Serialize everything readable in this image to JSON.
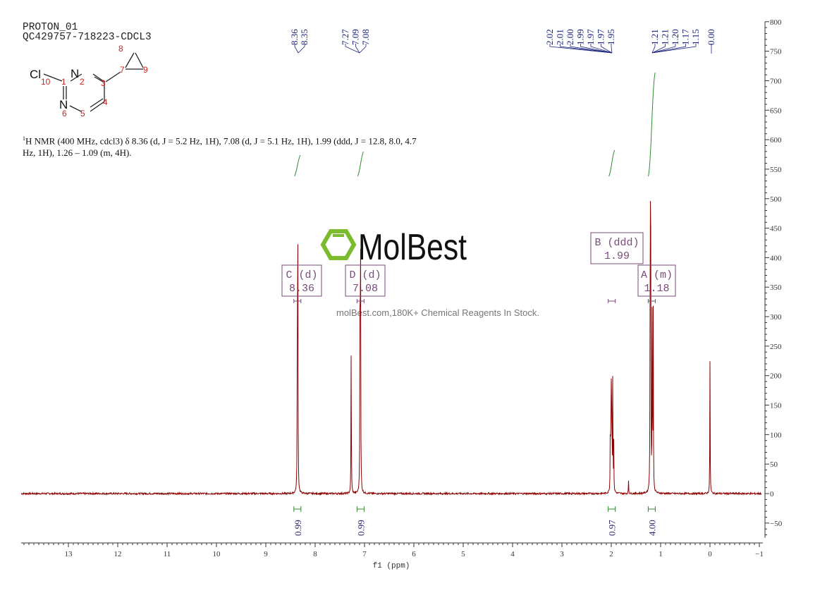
{
  "header": {
    "line1": "PROTON_01",
    "line2": "QC429757-718223-CDCL3"
  },
  "molecule": {
    "atoms": [
      "Cl",
      "N",
      "N"
    ],
    "numbers": [
      "1",
      "2",
      "3",
      "4",
      "5",
      "6",
      "7",
      "8",
      "9",
      "10"
    ]
  },
  "description": {
    "sup": "1",
    "text": "H NMR (400 MHz, cdcl3) δ 8.36 (d, J = 5.2 Hz, 1H), 7.08 (d, J = 5.1 Hz, 1H), 1.99 (ddd, J = 12.8, 8.0, 4.7 Hz, 1H), 1.26 – 1.09 (m, 4H)."
  },
  "watermark": {
    "brand": "MolBest",
    "tagline": "molBest.com,180K+ Chemical Reagents In Stock.",
    "color": "#7dbb2e"
  },
  "colors": {
    "spectrum": "#8b0000",
    "integral": "#2e8b2e",
    "peak_label": "#1a237e",
    "multiplet_box": "#7a4a7a",
    "axis": "#333333"
  },
  "chart_data": {
    "type": "line",
    "xlabel": "f1 (ppm)",
    "ylabel": "",
    "xlim": [
      13.96,
      -1
    ],
    "ylim": [
      -50,
      800
    ],
    "x_reversed": true,
    "x_ticks": [
      "13",
      "12",
      "11",
      "10",
      "9",
      "8",
      "7",
      "6",
      "5",
      "4",
      "3",
      "2",
      "1",
      "0",
      "-1"
    ],
    "y_ticks": [
      "800",
      "750",
      "700",
      "650",
      "600",
      "550",
      "500",
      "450",
      "400",
      "350",
      "300",
      "250",
      "200",
      "150",
      "100",
      "50",
      "0",
      "-50"
    ],
    "peaks": [
      {
        "ppm": 8.36,
        "height": 380
      },
      {
        "ppm": 8.35,
        "height": 370
      },
      {
        "ppm": 7.27,
        "height": 263
      },
      {
        "ppm": 7.09,
        "height": 420
      },
      {
        "ppm": 7.08,
        "height": 415
      },
      {
        "ppm": 2.02,
        "height": 90
      },
      {
        "ppm": 2.01,
        "height": 110
      },
      {
        "ppm": 2.0,
        "height": 150
      },
      {
        "ppm": 1.99,
        "height": 160
      },
      {
        "ppm": 1.97,
        "height": 110
      },
      {
        "ppm": 1.97,
        "height": 100
      },
      {
        "ppm": 1.95,
        "height": 80
      },
      {
        "ppm": 1.65,
        "height": 22
      },
      {
        "ppm": 1.21,
        "height": 300
      },
      {
        "ppm": 1.21,
        "height": 310
      },
      {
        "ppm": 1.2,
        "height": 360
      },
      {
        "ppm": 1.17,
        "height": 330
      },
      {
        "ppm": 1.15,
        "height": 300
      },
      {
        "ppm": 0.0,
        "height": 225
      }
    ],
    "peak_labels": {
      "group1": [
        "8.36",
        "8.35"
      ],
      "group2": [
        "7.27",
        "7.09",
        "7.08"
      ],
      "group3": [
        "2.02",
        "2.01",
        "2.00",
        "1.99",
        "1.97",
        "1.97",
        "1.95"
      ],
      "group4": [
        "1.21",
        "1.21",
        "1.20",
        "1.17",
        "1.15"
      ],
      "single": "0.00"
    },
    "multiplets": [
      {
        "label": "C (d)",
        "shift": "8.36",
        "ppm": 8.36
      },
      {
        "label": "D (d)",
        "shift": "7.08",
        "ppm": 7.08
      },
      {
        "label": "B (ddd)",
        "shift": "1.99",
        "ppm": 1.99
      },
      {
        "label": "A (m)",
        "shift": "1.18",
        "ppm": 1.18
      }
    ],
    "integrals": [
      {
        "ppm": 8.36,
        "value": "0.99"
      },
      {
        "ppm": 7.08,
        "value": "0.99"
      },
      {
        "ppm": 1.99,
        "value": "0.97"
      },
      {
        "ppm": 1.18,
        "value": "4.00"
      }
    ]
  }
}
